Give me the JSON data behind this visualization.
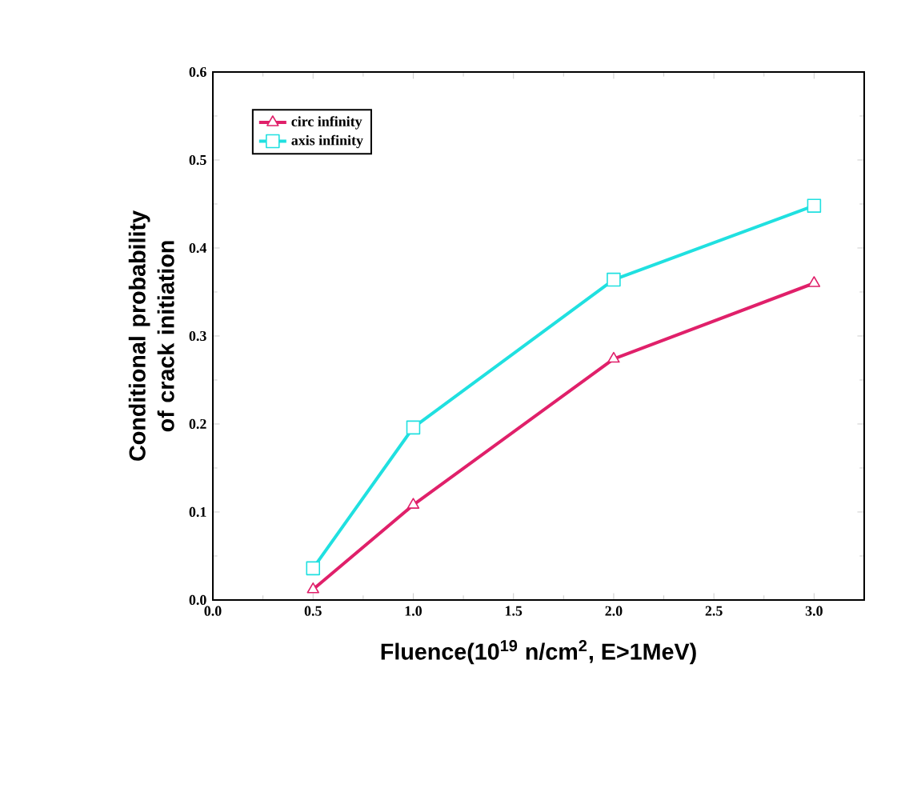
{
  "chart_data": {
    "type": "line",
    "xlabel": "Fluence(10$^{19}$ n/cm$^{2}$, E>1MeV)",
    "ylabel": "Conditional probability of crack initiation",
    "x": [
      0.5,
      1.0,
      2.0,
      3.0
    ],
    "series": [
      {
        "name": "circ infinity",
        "color": "#e0206a",
        "marker": "triangle",
        "values": [
          0.012,
          0.108,
          0.274,
          0.36
        ]
      },
      {
        "name": "axis infinity",
        "color": "#20e0e0",
        "marker": "square",
        "values": [
          0.036,
          0.196,
          0.364,
          0.448
        ]
      }
    ],
    "xlim": [
      0,
      3.25
    ],
    "ylim": [
      0,
      0.6
    ],
    "xticks": [
      {
        "value": 0,
        "label": "0.0"
      },
      0.5,
      {
        "value": 1,
        "label": "1.0"
      },
      1.5,
      {
        "value": 2,
        "label": "2.0"
      },
      2.5,
      {
        "value": 3,
        "label": "3.0"
      }
    ],
    "yticks": [
      {
        "value": 0,
        "label": "0.0"
      },
      0.1,
      0.2,
      0.3,
      0.4,
      0.5,
      0.6
    ],
    "legend": "top left",
    "grid": false,
    "line_style": "solid"
  }
}
